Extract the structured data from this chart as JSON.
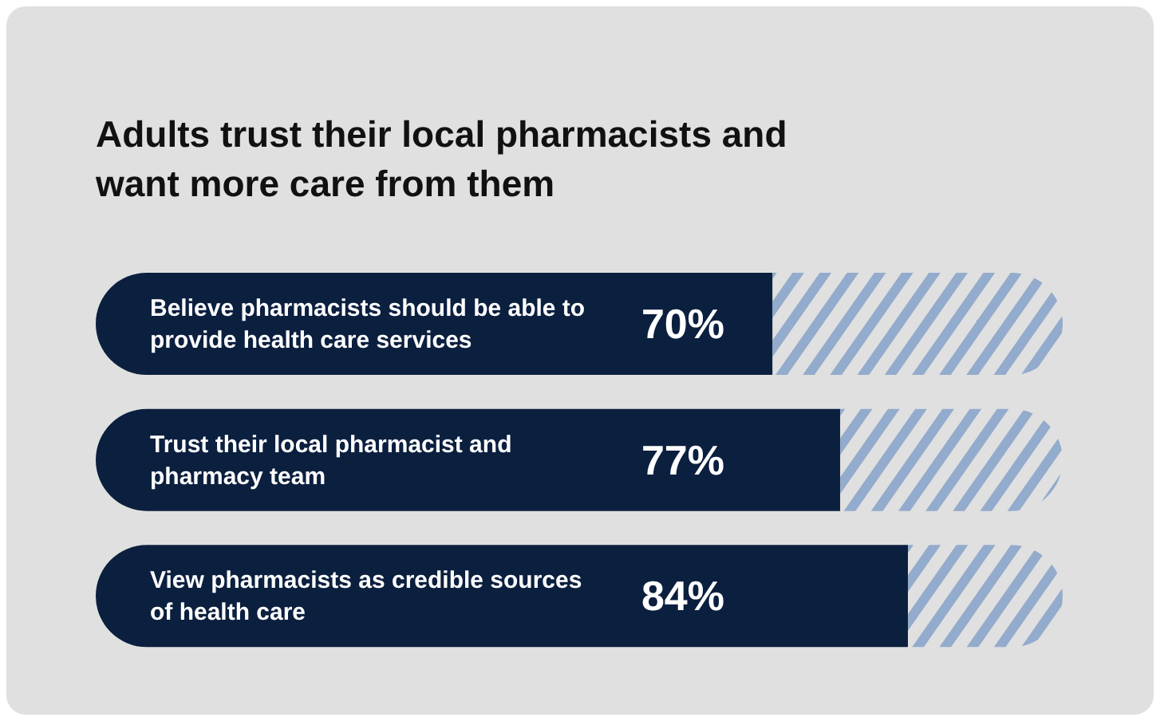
{
  "chart_data": {
    "type": "bar",
    "orientation": "horizontal",
    "stacked": true,
    "title": "Adults trust their local pharmacists and want more care from them",
    "categories": [
      "Believe pharmacists should be able to provide health care services",
      "Trust their local pharmacist and pharmacy team",
      "View pharmacists as credible sources of health care"
    ],
    "series": [
      {
        "color": "#0b1f3f",
        "values": [
          70,
          77,
          84
        ],
        "value_labels": [
          "70%",
          "77%",
          "84%"
        ]
      },
      {
        "color": "#93abcc",
        "values": [
          30,
          23,
          16
        ]
      }
    ],
    "xlim": [
      0,
      100
    ]
  }
}
